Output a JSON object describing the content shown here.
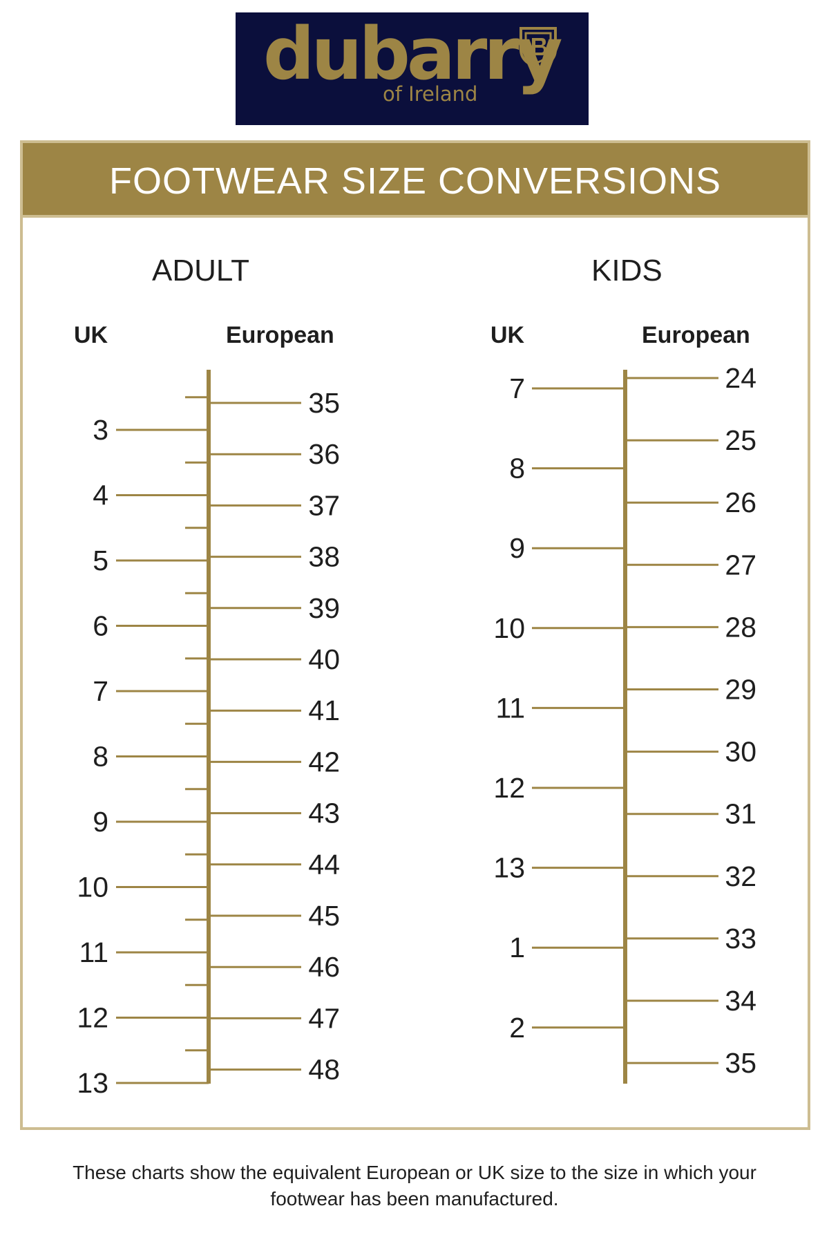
{
  "brand": {
    "name": "dubarry",
    "subtitle": "of Ireland",
    "colors": {
      "navy": "#0b0f3c",
      "gold": "#9d8545",
      "border": "#cdbd91"
    }
  },
  "banner": {
    "title": "FOOTWEAR SIZE CONVERSIONS"
  },
  "caption": {
    "line1": "These charts show the equivalent European or UK size to the size in which your",
    "line2": "footwear has been manufactured."
  },
  "chart_data": [
    {
      "type": "table",
      "title": "ADULT",
      "uk_label": "UK",
      "eu_label": "European",
      "uk_sizes": [
        "3",
        "4",
        "5",
        "6",
        "7",
        "8",
        "9",
        "10",
        "11",
        "12",
        "13"
      ],
      "eu_sizes": [
        "35",
        "36",
        "37",
        "38",
        "39",
        "40",
        "41",
        "42",
        "43",
        "44",
        "45",
        "46",
        "47",
        "48"
      ],
      "uk_half_steps": true,
      "uk_range": [
        2.5,
        13
      ],
      "eu_range": [
        35,
        48
      ]
    },
    {
      "type": "table",
      "title": "KIDS",
      "uk_label": "UK",
      "eu_label": "European",
      "uk_sizes": [
        "7",
        "8",
        "9",
        "10",
        "11",
        "12",
        "13",
        "1",
        "2"
      ],
      "eu_sizes": [
        "24",
        "25",
        "26",
        "27",
        "28",
        "29",
        "30",
        "31",
        "32",
        "33",
        "34",
        "35"
      ],
      "uk_half_steps": false,
      "uk_range": [
        6.5,
        14.5
      ],
      "eu_range": [
        24,
        35
      ]
    }
  ]
}
